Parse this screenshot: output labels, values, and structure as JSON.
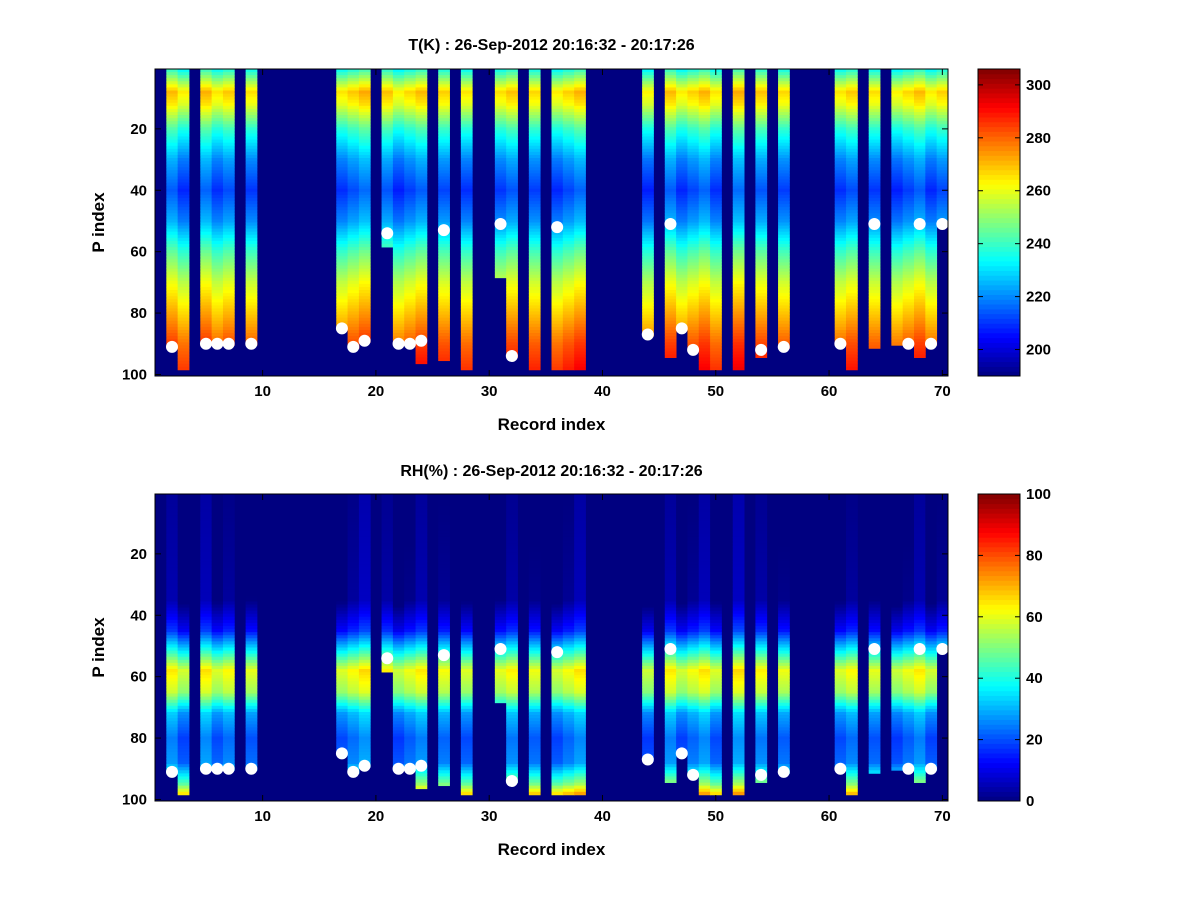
{
  "chart_data": [
    {
      "type": "heatmap",
      "title": "T(K) : 26-Sep-2012 20:16:32 - 20:17:26",
      "xlabel": "Record index",
      "ylabel": "P index",
      "xlim": [
        0.5,
        70.5
      ],
      "ylim": [
        100.5,
        0.5
      ],
      "y_reversed": true,
      "xticks": [
        10,
        20,
        30,
        40,
        50,
        60,
        70
      ],
      "yticks": [
        20,
        40,
        60,
        80,
        100
      ],
      "colormap": "jet",
      "clim": [
        190,
        306
      ],
      "colorbar_ticks": [
        200,
        220,
        240,
        260,
        280,
        300
      ],
      "background_value": 190,
      "records_with_data": [
        2,
        3,
        5,
        6,
        7,
        9,
        17,
        18,
        19,
        21,
        22,
        23,
        24,
        26,
        28,
        31,
        32,
        34,
        36,
        37,
        38,
        44,
        46,
        47,
        48,
        49,
        50,
        52,
        54,
        56,
        61,
        62,
        64,
        66,
        67,
        68,
        69,
        70
      ],
      "record_bottom_p": {
        "2": 91,
        "3": 98,
        "5": 90,
        "6": 90,
        "7": 90,
        "9": 90,
        "17": 85,
        "18": 91,
        "19": 89,
        "21": 58,
        "22": 90,
        "23": 90,
        "24": 96,
        "26": 95,
        "28": 98,
        "31": 68,
        "32": 94,
        "34": 98,
        "36": 98,
        "37": 98,
        "38": 98,
        "44": 87,
        "46": 94,
        "47": 85,
        "48": 92,
        "49": 98,
        "50": 98,
        "52": 98,
        "54": 94,
        "56": 91,
        "61": 90,
        "62": 98,
        "64": 91,
        "66": 90,
        "67": 90,
        "68": 94,
        "69": 90,
        "70": 51
      },
      "profile": {
        "p": [
          1,
          8,
          12,
          20,
          30,
          40,
          50,
          60,
          70,
          80,
          90,
          100
        ],
        "value": [
          238,
          268,
          262,
          240,
          222,
          212,
          222,
          242,
          258,
          270,
          282,
          290
        ]
      },
      "markers": [
        {
          "x": 2,
          "y": 91
        },
        {
          "x": 5,
          "y": 90
        },
        {
          "x": 6,
          "y": 90
        },
        {
          "x": 7,
          "y": 90
        },
        {
          "x": 9,
          "y": 90
        },
        {
          "x": 17,
          "y": 85
        },
        {
          "x": 18,
          "y": 91
        },
        {
          "x": 19,
          "y": 89
        },
        {
          "x": 21,
          "y": 54
        },
        {
          "x": 22,
          "y": 90
        },
        {
          "x": 23,
          "y": 90
        },
        {
          "x": 24,
          "y": 89
        },
        {
          "x": 26,
          "y": 53
        },
        {
          "x": 31,
          "y": 51
        },
        {
          "x": 32,
          "y": 94
        },
        {
          "x": 36,
          "y": 52
        },
        {
          "x": 44,
          "y": 87
        },
        {
          "x": 46,
          "y": 51
        },
        {
          "x": 47,
          "y": 85
        },
        {
          "x": 48,
          "y": 92
        },
        {
          "x": 54,
          "y": 92
        },
        {
          "x": 56,
          "y": 91
        },
        {
          "x": 61,
          "y": 90
        },
        {
          "x": 64,
          "y": 51
        },
        {
          "x": 67,
          "y": 90
        },
        {
          "x": 68,
          "y": 51
        },
        {
          "x": 69,
          "y": 90
        },
        {
          "x": 70,
          "y": 51
        }
      ]
    },
    {
      "type": "heatmap",
      "title": "RH(%) : 26-Sep-2012 20:16:32 - 20:17:26",
      "xlabel": "Record index",
      "ylabel": "P index",
      "xlim": [
        0.5,
        70.5
      ],
      "ylim": [
        100.5,
        0.5
      ],
      "y_reversed": true,
      "xticks": [
        10,
        20,
        30,
        40,
        50,
        60,
        70
      ],
      "yticks": [
        20,
        40,
        60,
        80,
        100
      ],
      "colormap": "jet",
      "clim": [
        0,
        100
      ],
      "colorbar_ticks": [
        0,
        20,
        40,
        60,
        80,
        100
      ],
      "background_value": 0,
      "records_with_data": [
        2,
        3,
        5,
        6,
        7,
        9,
        17,
        18,
        19,
        21,
        22,
        23,
        24,
        26,
        28,
        31,
        32,
        34,
        36,
        37,
        38,
        44,
        46,
        47,
        48,
        49,
        50,
        52,
        54,
        56,
        61,
        62,
        64,
        66,
        67,
        68,
        69,
        70
      ],
      "record_bottom_p": {
        "2": 91,
        "3": 98,
        "5": 90,
        "6": 90,
        "7": 90,
        "9": 90,
        "17": 85,
        "18": 91,
        "19": 89,
        "21": 58,
        "22": 90,
        "23": 90,
        "24": 96,
        "26": 95,
        "28": 98,
        "31": 68,
        "32": 94,
        "34": 98,
        "36": 98,
        "37": 98,
        "38": 98,
        "44": 87,
        "46": 94,
        "47": 85,
        "48": 92,
        "49": 98,
        "50": 98,
        "52": 98,
        "54": 94,
        "56": 91,
        "61": 90,
        "62": 98,
        "64": 91,
        "66": 90,
        "67": 90,
        "68": 94,
        "69": 90,
        "70": 51
      },
      "profile": {
        "p": [
          1,
          35,
          45,
          52,
          58,
          65,
          72,
          80,
          88,
          95,
          100
        ],
        "value": [
          0,
          2,
          15,
          40,
          62,
          55,
          30,
          22,
          25,
          50,
          80
        ]
      },
      "markers": [
        {
          "x": 2,
          "y": 91
        },
        {
          "x": 5,
          "y": 90
        },
        {
          "x": 6,
          "y": 90
        },
        {
          "x": 7,
          "y": 90
        },
        {
          "x": 9,
          "y": 90
        },
        {
          "x": 17,
          "y": 85
        },
        {
          "x": 18,
          "y": 91
        },
        {
          "x": 19,
          "y": 89
        },
        {
          "x": 21,
          "y": 54
        },
        {
          "x": 22,
          "y": 90
        },
        {
          "x": 23,
          "y": 90
        },
        {
          "x": 24,
          "y": 89
        },
        {
          "x": 26,
          "y": 53
        },
        {
          "x": 31,
          "y": 51
        },
        {
          "x": 32,
          "y": 94
        },
        {
          "x": 36,
          "y": 52
        },
        {
          "x": 44,
          "y": 87
        },
        {
          "x": 46,
          "y": 51
        },
        {
          "x": 47,
          "y": 85
        },
        {
          "x": 48,
          "y": 92
        },
        {
          "x": 54,
          "y": 92
        },
        {
          "x": 56,
          "y": 91
        },
        {
          "x": 61,
          "y": 90
        },
        {
          "x": 64,
          "y": 51
        },
        {
          "x": 67,
          "y": 90
        },
        {
          "x": 68,
          "y": 51
        },
        {
          "x": 69,
          "y": 90
        },
        {
          "x": 70,
          "y": 51
        }
      ]
    }
  ]
}
